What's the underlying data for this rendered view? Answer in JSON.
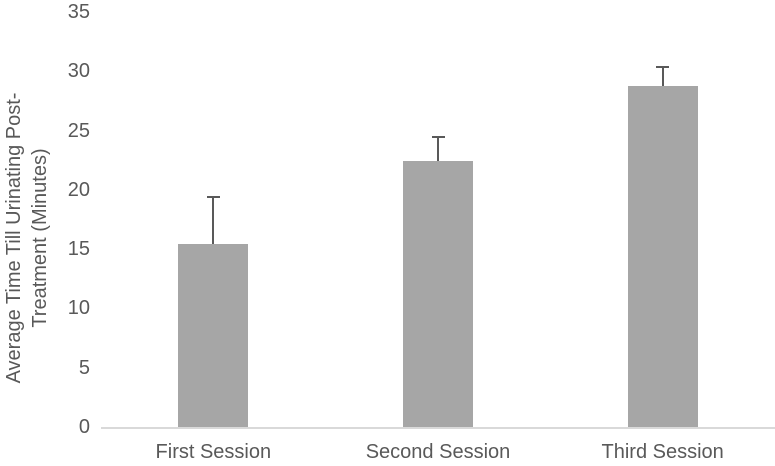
{
  "chart_data": {
    "type": "bar",
    "title": "",
    "categories": [
      "First Session",
      "Second Session",
      "Third Session"
    ],
    "values": [
      15.4,
      22.4,
      28.8
    ],
    "error_plus": [
      4.0,
      2.1,
      1.6
    ],
    "xlabel": "",
    "ylabel_line1": "Average Time Till Urinating Post-",
    "ylabel_line2": "Treatment (Minutes)",
    "yticks": [
      0,
      5,
      10,
      15,
      20,
      25,
      30,
      35
    ],
    "ylim": [
      0,
      35
    ],
    "grid": false,
    "legend": "none",
    "colors": {
      "bar": "#a6a6a6",
      "error_bar": "#595959",
      "text": "#595959",
      "axis_line": "#d9d9d9"
    }
  }
}
